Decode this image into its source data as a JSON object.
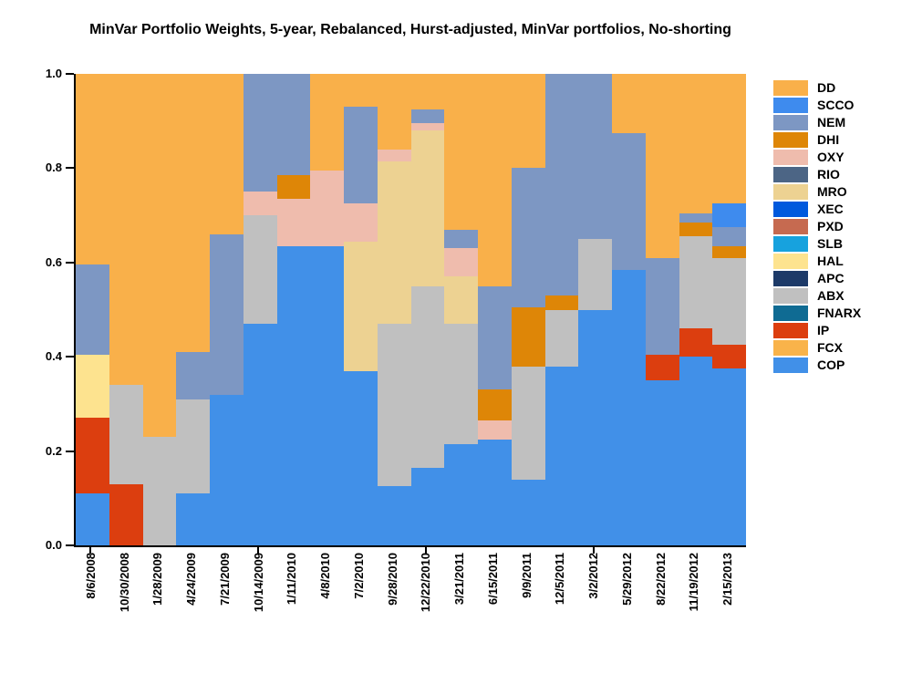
{
  "title": "MinVar Portfolio Weights, 5-year, Rebalanced, Hurst-adjusted, MinVar portfolios, No-shorting",
  "y_axis": {
    "ticks": [
      "1.0",
      "0.8",
      "0.6",
      "0.4",
      "0.2",
      "0.0"
    ]
  },
  "x_axis": {
    "major_tick_category_indexes": [
      0,
      5,
      10,
      15
    ]
  },
  "chart_data": {
    "type": "bar",
    "subtype": "stacked-weights-100pct",
    "title": "MinVar Portfolio Weights, 5-year, Rebalanced, Hurst-adjusted, MinVar portfolios, No-shorting",
    "xlabel": "",
    "ylabel": "",
    "ylim": [
      0.0,
      1.0
    ],
    "y_tick_values": [
      0.0,
      0.2,
      0.4,
      0.6,
      0.8,
      1.0
    ],
    "grid": false,
    "legend_position": "right",
    "categories": [
      "8/6/2008",
      "10/30/2008",
      "1/28/2009",
      "4/24/2009",
      "7/21/2009",
      "10/14/2009",
      "1/11/2010",
      "4/8/2010",
      "7/2/2010",
      "9/28/2010",
      "12/22/2010",
      "3/21/2011",
      "6/15/2011",
      "9/9/2011",
      "12/5/2011",
      "3/2/2012",
      "5/29/2012",
      "8/22/2012",
      "11/19/2012",
      "2/15/2013"
    ],
    "stack_order_note": "series listed top-to-bottom as in legend; bars stack bottom-to-top in reverse order (COP at bottom, DD on top)",
    "series": [
      {
        "name": "DD",
        "color": "#F9B04A",
        "values": [
          0.405,
          0.66,
          0.77,
          0.59,
          0.34,
          0,
          0,
          0.205,
          0.07,
          0.16,
          0.075,
          0.33,
          0.45,
          0.2,
          0,
          0,
          0.125,
          0.39,
          0.295,
          0.275
        ]
      },
      {
        "name": "SCCO",
        "color": "#3E8BEE",
        "values": [
          0,
          0,
          0,
          0,
          0,
          0,
          0,
          0,
          0,
          0,
          0,
          0,
          0,
          0,
          0,
          0,
          0,
          0,
          0,
          0.05
        ]
      },
      {
        "name": "NEM",
        "color": "#7D97C3",
        "values": [
          0.19,
          0,
          0,
          0.1,
          0.34,
          0.25,
          0.215,
          0,
          0.205,
          0,
          0.03,
          0.04,
          0.22,
          0.295,
          0.47,
          0.35,
          0.29,
          0.205,
          0.02,
          0.04
        ]
      },
      {
        "name": "DHI",
        "color": "#DE8607",
        "values": [
          0,
          0,
          0,
          0,
          0,
          0,
          0.05,
          0,
          0,
          0,
          0,
          0,
          0.065,
          0.125,
          0.03,
          0,
          0,
          0,
          0.03,
          0.025
        ]
      },
      {
        "name": "OXY",
        "color": "#EFBCAD",
        "values": [
          0,
          0,
          0,
          0,
          0,
          0.05,
          0.1,
          0.16,
          0.08,
          0.025,
          0.015,
          0.06,
          0.04,
          0,
          0,
          0,
          0,
          0,
          0,
          0
        ]
      },
      {
        "name": "RIO",
        "color": "#4C6585",
        "values": [
          0,
          0,
          0,
          0,
          0,
          0,
          0,
          0,
          0,
          0,
          0,
          0,
          0,
          0,
          0,
          0,
          0,
          0,
          0,
          0
        ]
      },
      {
        "name": "MRO",
        "color": "#EDD292",
        "values": [
          0,
          0,
          0,
          0,
          0,
          0,
          0,
          0,
          0.275,
          0.345,
          0.33,
          0.1,
          0,
          0,
          0,
          0,
          0,
          0,
          0,
          0
        ]
      },
      {
        "name": "XEC",
        "color": "#0059DD",
        "values": [
          0,
          0,
          0,
          0,
          0,
          0,
          0,
          0,
          0,
          0,
          0,
          0,
          0,
          0,
          0,
          0,
          0,
          0,
          0,
          0
        ]
      },
      {
        "name": "PXD",
        "color": "#C66A50",
        "values": [
          0,
          0,
          0,
          0,
          0,
          0,
          0,
          0,
          0,
          0,
          0,
          0,
          0,
          0,
          0,
          0,
          0,
          0,
          0,
          0
        ]
      },
      {
        "name": "SLB",
        "color": "#17A2DE",
        "values": [
          0,
          0,
          0,
          0,
          0,
          0,
          0,
          0,
          0,
          0,
          0,
          0,
          0,
          0,
          0,
          0,
          0,
          0,
          0,
          0
        ]
      },
      {
        "name": "HAL",
        "color": "#FDE38F",
        "values": [
          0.135,
          0,
          0,
          0,
          0,
          0,
          0,
          0,
          0,
          0,
          0,
          0,
          0,
          0,
          0,
          0,
          0,
          0,
          0,
          0
        ]
      },
      {
        "name": "APC",
        "color": "#1D3A68",
        "values": [
          0,
          0,
          0,
          0,
          0,
          0,
          0,
          0,
          0,
          0,
          0,
          0,
          0,
          0,
          0,
          0,
          0,
          0,
          0,
          0
        ]
      },
      {
        "name": "ABX",
        "color": "#C0C0C0",
        "values": [
          0,
          0.21,
          0.23,
          0.2,
          0,
          0.23,
          0,
          0,
          0,
          0.345,
          0.385,
          0.255,
          0,
          0.24,
          0.12,
          0.15,
          0,
          0,
          0.195,
          0.185
        ]
      },
      {
        "name": "FNARX",
        "color": "#0F6B93",
        "values": [
          0,
          0,
          0,
          0,
          0,
          0,
          0,
          0,
          0,
          0,
          0,
          0,
          0,
          0,
          0,
          0,
          0,
          0,
          0,
          0
        ]
      },
      {
        "name": "IP",
        "color": "#DC3E0F",
        "values": [
          0.16,
          0.13,
          0,
          0,
          0,
          0,
          0,
          0,
          0,
          0,
          0,
          0,
          0,
          0,
          0,
          0,
          0,
          0.055,
          0.06,
          0.05
        ]
      },
      {
        "name": "FCX",
        "color": "#F9B34A",
        "values": [
          0,
          0,
          0,
          0,
          0,
          0,
          0,
          0,
          0,
          0,
          0,
          0,
          0,
          0,
          0,
          0,
          0,
          0,
          0,
          0
        ]
      },
      {
        "name": "COP",
        "color": "#4190E8",
        "values": [
          0.11,
          0,
          0,
          0.11,
          0.32,
          0.47,
          0.635,
          0.635,
          0.37,
          0.125,
          0.165,
          0.215,
          0.225,
          0.14,
          0.38,
          0.5,
          0.585,
          0.35,
          0.4,
          0.375
        ]
      }
    ]
  }
}
